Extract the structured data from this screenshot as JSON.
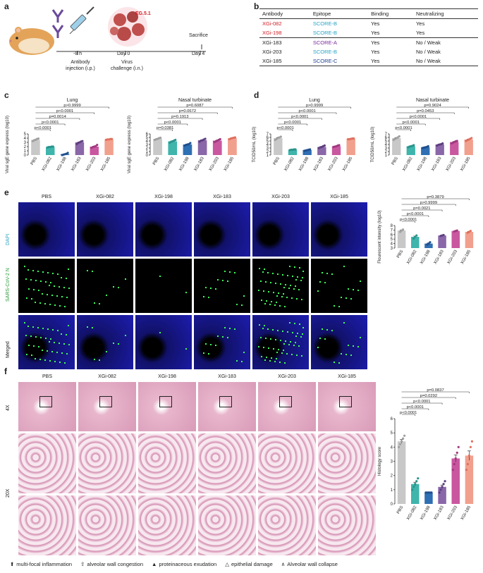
{
  "panels": {
    "a": "a",
    "b": "b",
    "c": "c",
    "d": "d",
    "e": "e",
    "f": "f"
  },
  "panel_a": {
    "variant": "EG.5.1",
    "sacrifice": "Sacrifice",
    "times": [
      "-8 h",
      "Day 0",
      "Day 4"
    ],
    "step1_l1": "Antibody",
    "step1_l2": "injection (i.p.)",
    "step2_l1": "Virus",
    "step2_l2": "challenge (i.n.)"
  },
  "table_b": {
    "headers": [
      "Antibody",
      "Epitope",
      "Binding",
      "Neutralizing"
    ],
    "rows": [
      {
        "antibody": "XGi-082",
        "epitope": "SCORE-B",
        "binding": "Yes",
        "neutralizing": "Yes",
        "ab_color": "#d21f26",
        "ep_color": "#2aa3c5"
      },
      {
        "antibody": "XGi-198",
        "epitope": "SCORE-B",
        "binding": "Yes",
        "neutralizing": "Yes",
        "ab_color": "#d21f26",
        "ep_color": "#2aa3c5"
      },
      {
        "antibody": "XGi-183",
        "epitope": "SCORE-A",
        "binding": "Yes",
        "neutralizing": "No / Weak",
        "ab_color": "#222222",
        "ep_color": "#7a2a9a"
      },
      {
        "antibody": "XGi-203",
        "epitope": "SCORE-B",
        "binding": "Yes",
        "neutralizing": "No / Weak",
        "ab_color": "#222222",
        "ep_color": "#2aa3c5"
      },
      {
        "antibody": "XGi-185",
        "epitope": "SCORE-C",
        "binding": "Yes",
        "neutralizing": "No / Weak",
        "ab_color": "#222222",
        "ep_color": "#1f3f8f"
      }
    ]
  },
  "groups": [
    "PBS",
    "XGi-082",
    "XGi-198",
    "XGi-183",
    "XGi-203",
    "XGi-185"
  ],
  "group_colors": [
    "#c8c8c8",
    "#3fb5ac",
    "#2f6fb3",
    "#8a67a8",
    "#c9579f",
    "#f2a08e"
  ],
  "point_colors": [
    "#a0a0a0",
    "#2a948c",
    "#1f4f8f",
    "#5e3e80",
    "#a03a80",
    "#e0705e"
  ],
  "chart_data": [
    {
      "type": "bar",
      "title": "Lung",
      "ylabel": "Viral sgE gene express (log10)",
      "ylim": [
        0,
        5
      ],
      "yticks": [
        0,
        1,
        2,
        3,
        4,
        5
      ],
      "values": [
        3.6,
        1.9,
        0.2,
        3.0,
        2.0,
        3.7
      ],
      "points": [
        [
          3.3,
          3.5,
          3.6,
          3.8,
          3.9
        ],
        [
          1.8,
          1.9,
          1.9,
          2.0,
          2.0
        ],
        [
          0.0,
          0.1,
          0.2,
          0.3,
          0.5
        ],
        [
          2.6,
          2.9,
          3.0,
          3.2,
          3.3
        ],
        [
          1.7,
          1.9,
          2.0,
          2.1,
          2.4
        ],
        [
          3.6,
          3.7,
          3.7,
          3.8,
          3.8
        ]
      ],
      "pvalues": [
        "p<0.0001",
        "p<0.0001",
        "p=0.0014",
        "p<0.0001",
        "p>0.9999"
      ]
    },
    {
      "type": "bar",
      "title": "Nasal turbinate",
      "ylabel": "Viral sgE gene express (log10)",
      "ylim": [
        0,
        6
      ],
      "yticks": [
        0,
        1,
        2,
        3,
        4,
        5,
        6
      ],
      "values": [
        4.6,
        3.9,
        3.0,
        4.2,
        4.1,
        4.8
      ],
      "points": [
        [
          4.3,
          4.5,
          4.6,
          4.8,
          4.9
        ],
        [
          3.5,
          3.8,
          3.9,
          4.1,
          4.3
        ],
        [
          2.7,
          2.9,
          3.0,
          3.1,
          3.4
        ],
        [
          3.8,
          4.1,
          4.2,
          4.4,
          4.6
        ],
        [
          3.7,
          3.9,
          4.1,
          4.3,
          4.5
        ],
        [
          4.5,
          4.7,
          4.8,
          4.9,
          5.0
        ]
      ],
      "pvalues": [
        "p=0.0381",
        "p<0.0001",
        "p=0.1913",
        "p=0.0672",
        "p=0.6087"
      ]
    },
    {
      "type": "bar",
      "title": "Lung",
      "ylabel": "TCID50/mL (log10)",
      "ylim": [
        1,
        7
      ],
      "yticks": [
        1,
        2,
        3,
        4,
        5,
        6,
        7
      ],
      "values": [
        5.8,
        2.5,
        2.4,
        3.3,
        3.5,
        5.6
      ],
      "points": [
        [
          5.3,
          5.6,
          5.9,
          6.0,
          6.2
        ],
        [
          2.4,
          2.5,
          2.5,
          2.6,
          2.6
        ],
        [
          2.2,
          2.3,
          2.4,
          2.5,
          2.6
        ],
        [
          3.0,
          3.2,
          3.3,
          3.5,
          3.7
        ],
        [
          3.3,
          3.4,
          3.5,
          3.7,
          3.8
        ],
        [
          5.5,
          5.5,
          5.6,
          5.7,
          5.7
        ]
      ],
      "pvalues": [
        "p<0.0001",
        "p<0.0001",
        "p<0.0001",
        "p<0.0001",
        "p>0.9999"
      ]
    },
    {
      "type": "bar",
      "title": "Nasal turbinate",
      "ylabel": "TCID50/mL (log10)",
      "ylim": [
        1,
        7
      ],
      "yticks": [
        1,
        2,
        3,
        4,
        5,
        6,
        7
      ],
      "values": [
        5.8,
        3.5,
        3.2,
        4.0,
        4.7,
        5.4
      ],
      "points": [
        [
          5.3,
          5.6,
          5.8,
          6.0,
          6.3
        ],
        [
          3.2,
          3.4,
          3.5,
          3.6,
          3.8
        ],
        [
          3.0,
          3.1,
          3.2,
          3.3,
          3.5
        ],
        [
          3.7,
          3.9,
          4.0,
          4.1,
          4.3
        ],
        [
          4.3,
          4.5,
          4.7,
          4.9,
          5.0
        ],
        [
          5.0,
          5.2,
          5.4,
          5.6,
          5.8
        ]
      ],
      "pvalues": [
        "p<0.0001",
        "p<0.0001",
        "p<0.0001",
        "p=0.0453",
        "p=0.9024"
      ]
    },
    {
      "type": "bar",
      "title": "",
      "ylabel": "Flourescent intensity (log10)",
      "ylim": [
        3,
        8
      ],
      "yticks": [
        3,
        4,
        5,
        6,
        7,
        8
      ],
      "values": [
        6.9,
        5.5,
        4.0,
        5.8,
        6.8,
        6.6
      ],
      "points": [
        [
          6.6,
          6.9,
          7.1
        ],
        [
          5.1,
          5.5,
          5.8
        ],
        [
          3.8,
          4.0,
          4.3
        ],
        [
          5.7,
          5.8,
          5.9
        ],
        [
          6.7,
          6.8,
          6.9
        ],
        [
          6.4,
          6.6,
          6.8
        ]
      ],
      "pvalues": [
        "p<0.0001",
        "p<0.0001",
        "p=0.0021",
        "p>0.9999",
        "p=0.3879"
      ]
    },
    {
      "type": "bar",
      "title": "",
      "ylabel": "Histology score",
      "ylim": [
        0,
        6
      ],
      "yticks": [
        0,
        1,
        2,
        3,
        4,
        5,
        6
      ],
      "values": [
        4.4,
        1.4,
        0.8,
        1.2,
        3.2,
        3.4
      ],
      "points": [
        [
          4.0,
          4.2,
          4.4,
          4.6,
          4.8
        ],
        [
          1.0,
          1.2,
          1.4,
          1.6,
          1.8
        ],
        [
          0.8,
          0.8,
          0.8,
          0.8,
          0.8
        ],
        [
          0.8,
          1.0,
          1.2,
          1.4,
          1.6
        ],
        [
          2.4,
          2.8,
          3.2,
          3.6,
          4.0
        ],
        [
          2.4,
          2.8,
          3.4,
          4.0,
          4.4
        ]
      ],
      "pvalues": [
        "p<0.0001",
        "p<0.0001",
        "p<0.0001",
        "p=0.0292",
        "p=0.0837"
      ]
    }
  ],
  "panel_e": {
    "rows": [
      "DAPI",
      "SARS-CoV-2 N",
      "Merged"
    ]
  },
  "panel_f": {
    "rows": [
      "4X",
      "20X"
    ]
  },
  "legend": [
    {
      "symbol": "⬆",
      "text": "multi-focal inflammation"
    },
    {
      "symbol": "⇧",
      "text": "alveolar wall congestion"
    },
    {
      "symbol": "▲",
      "text": "proteinaceous exudation"
    },
    {
      "symbol": "△",
      "text": "epithelial damage"
    },
    {
      "symbol": "∧",
      "text": "Alveolar wall collapse"
    }
  ]
}
